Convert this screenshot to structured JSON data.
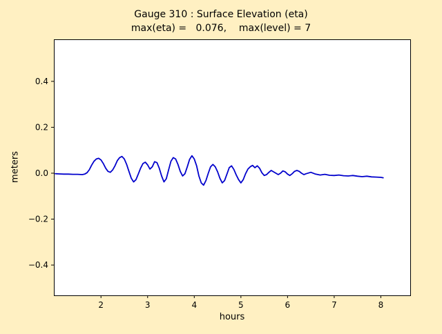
{
  "figure": {
    "background_color": "#FFF0C2",
    "plot_background_color": "#FFFFFF",
    "frame_color": "#000000"
  },
  "chart_data": {
    "type": "line",
    "title": "Gauge 310 : Surface Elevation (eta)",
    "subtitle": "max(eta) =   0.076,    max(level) = 7",
    "xlabel": "hours",
    "ylabel": "meters",
    "xlim": [
      0.99,
      8.63
    ],
    "ylim": [
      -0.532,
      0.583
    ],
    "grid": false,
    "legend": "none",
    "xticks": [
      2,
      3,
      4,
      5,
      6,
      7,
      8
    ],
    "xtick_labels": [
      "2",
      "3",
      "4",
      "5",
      "6",
      "7",
      "8"
    ],
    "yticks": [
      -0.4,
      -0.2,
      0.0,
      0.2,
      0.4
    ],
    "ytick_labels": [
      "−0.4",
      "−0.2",
      "0.0",
      "0.2",
      "0.4"
    ],
    "max_eta": 0.076,
    "max_level": 7,
    "series": [
      {
        "name": "eta",
        "color": "#0000CC",
        "points": [
          [
            1.02,
            -0.002
          ],
          [
            1.1,
            -0.003
          ],
          [
            1.2,
            -0.004
          ],
          [
            1.3,
            -0.004
          ],
          [
            1.4,
            -0.005
          ],
          [
            1.5,
            -0.005
          ],
          [
            1.6,
            -0.006
          ],
          [
            1.65,
            -0.004
          ],
          [
            1.7,
            0.002
          ],
          [
            1.75,
            0.015
          ],
          [
            1.8,
            0.035
          ],
          [
            1.85,
            0.052
          ],
          [
            1.9,
            0.062
          ],
          [
            1.95,
            0.065
          ],
          [
            2.0,
            0.058
          ],
          [
            2.05,
            0.042
          ],
          [
            2.1,
            0.022
          ],
          [
            2.15,
            0.008
          ],
          [
            2.2,
            0.004
          ],
          [
            2.25,
            0.014
          ],
          [
            2.3,
            0.032
          ],
          [
            2.35,
            0.055
          ],
          [
            2.4,
            0.068
          ],
          [
            2.45,
            0.073
          ],
          [
            2.5,
            0.062
          ],
          [
            2.55,
            0.038
          ],
          [
            2.6,
            0.008
          ],
          [
            2.65,
            -0.022
          ],
          [
            2.7,
            -0.038
          ],
          [
            2.75,
            -0.028
          ],
          [
            2.8,
            -0.004
          ],
          [
            2.85,
            0.022
          ],
          [
            2.9,
            0.042
          ],
          [
            2.95,
            0.048
          ],
          [
            3.0,
            0.036
          ],
          [
            3.05,
            0.018
          ],
          [
            3.1,
            0.028
          ],
          [
            3.15,
            0.05
          ],
          [
            3.2,
            0.046
          ],
          [
            3.25,
            0.022
          ],
          [
            3.3,
            -0.012
          ],
          [
            3.35,
            -0.038
          ],
          [
            3.4,
            -0.024
          ],
          [
            3.45,
            0.014
          ],
          [
            3.5,
            0.052
          ],
          [
            3.55,
            0.068
          ],
          [
            3.6,
            0.062
          ],
          [
            3.65,
            0.038
          ],
          [
            3.7,
            0.008
          ],
          [
            3.75,
            -0.012
          ],
          [
            3.8,
            -0.002
          ],
          [
            3.85,
            0.028
          ],
          [
            3.9,
            0.06
          ],
          [
            3.95,
            0.076
          ],
          [
            4.0,
            0.062
          ],
          [
            4.05,
            0.032
          ],
          [
            4.1,
            -0.012
          ],
          [
            4.15,
            -0.042
          ],
          [
            4.2,
            -0.052
          ],
          [
            4.25,
            -0.032
          ],
          [
            4.3,
            0.0
          ],
          [
            4.35,
            0.028
          ],
          [
            4.4,
            0.038
          ],
          [
            4.45,
            0.028
          ],
          [
            4.5,
            0.006
          ],
          [
            4.55,
            -0.022
          ],
          [
            4.6,
            -0.042
          ],
          [
            4.65,
            -0.032
          ],
          [
            4.7,
            -0.004
          ],
          [
            4.75,
            0.024
          ],
          [
            4.8,
            0.032
          ],
          [
            4.85,
            0.016
          ],
          [
            4.9,
            -0.008
          ],
          [
            4.95,
            -0.028
          ],
          [
            5.0,
            -0.042
          ],
          [
            5.05,
            -0.028
          ],
          [
            5.1,
            -0.002
          ],
          [
            5.15,
            0.018
          ],
          [
            5.2,
            0.028
          ],
          [
            5.25,
            0.034
          ],
          [
            5.3,
            0.024
          ],
          [
            5.35,
            0.032
          ],
          [
            5.4,
            0.022
          ],
          [
            5.45,
            0.002
          ],
          [
            5.5,
            -0.01
          ],
          [
            5.55,
            -0.006
          ],
          [
            5.6,
            0.004
          ],
          [
            5.65,
            0.012
          ],
          [
            5.7,
            0.006
          ],
          [
            5.75,
            0.0
          ],
          [
            5.8,
            -0.006
          ],
          [
            5.85,
            0.0
          ],
          [
            5.9,
            0.01
          ],
          [
            5.95,
            0.006
          ],
          [
            6.0,
            -0.004
          ],
          [
            6.05,
            -0.01
          ],
          [
            6.1,
            -0.002
          ],
          [
            6.15,
            0.008
          ],
          [
            6.2,
            0.012
          ],
          [
            6.25,
            0.008
          ],
          [
            6.3,
            0.0
          ],
          [
            6.35,
            -0.006
          ],
          [
            6.4,
            -0.002
          ],
          [
            6.5,
            0.004
          ],
          [
            6.6,
            -0.004
          ],
          [
            6.7,
            -0.008
          ],
          [
            6.8,
            -0.005
          ],
          [
            6.9,
            -0.009
          ],
          [
            7.0,
            -0.01
          ],
          [
            7.1,
            -0.008
          ],
          [
            7.2,
            -0.011
          ],
          [
            7.3,
            -0.012
          ],
          [
            7.4,
            -0.01
          ],
          [
            7.5,
            -0.013
          ],
          [
            7.6,
            -0.015
          ],
          [
            7.7,
            -0.013
          ],
          [
            7.8,
            -0.016
          ],
          [
            7.9,
            -0.017
          ],
          [
            8.0,
            -0.018
          ],
          [
            8.05,
            -0.02
          ]
        ]
      }
    ]
  }
}
